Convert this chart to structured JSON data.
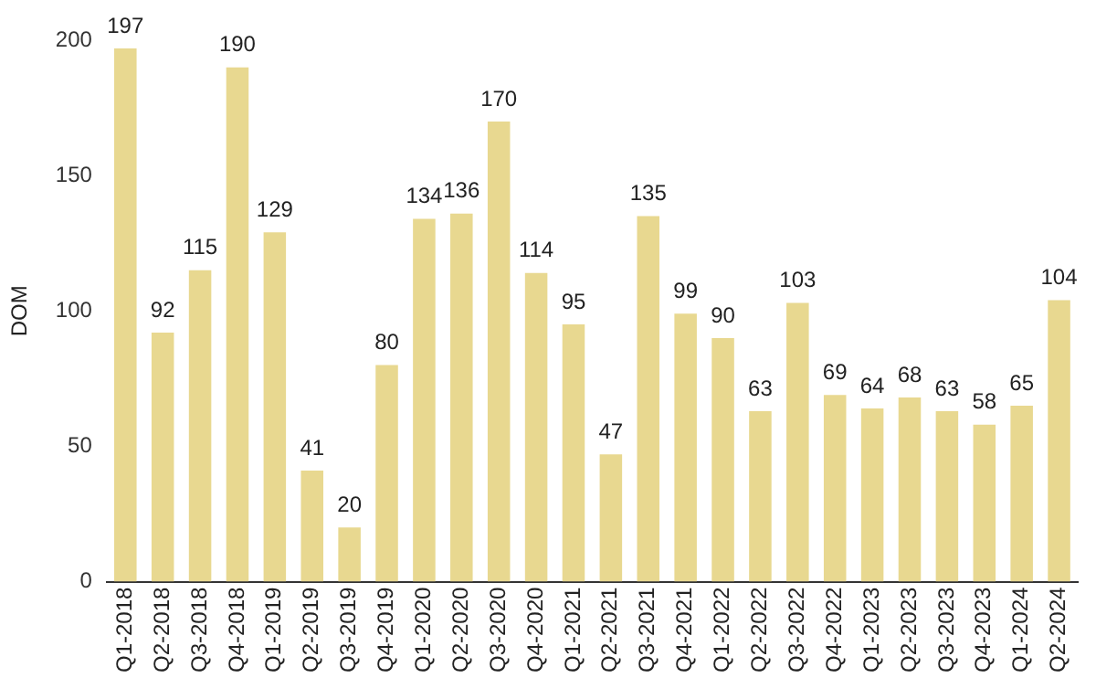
{
  "chart_data": {
    "type": "bar",
    "ylabel": "DOM",
    "categories": [
      "Q1-2018",
      "Q2-2018",
      "Q3-2018",
      "Q4-2018",
      "Q1-2019",
      "Q2-2019",
      "Q3-2019",
      "Q4-2019",
      "Q1-2020",
      "Q2-2020",
      "Q3-2020",
      "Q4-2020",
      "Q1-2021",
      "Q2-2021",
      "Q3-2021",
      "Q4-2021",
      "Q1-2022",
      "Q2-2022",
      "Q3-2022",
      "Q4-2022",
      "Q1-2023",
      "Q2-2023",
      "Q3-2023",
      "Q4-2023",
      "Q1-2024",
      "Q2-2024"
    ],
    "values": [
      197,
      92,
      115,
      190,
      129,
      41,
      20,
      80,
      134,
      136,
      170,
      114,
      95,
      47,
      135,
      99,
      90,
      63,
      103,
      69,
      64,
      68,
      63,
      58,
      65,
      104
    ],
    "color": "#e8d890",
    "ylim": [
      0,
      200
    ],
    "yticks": [
      0,
      50,
      100,
      150,
      200
    ],
    "grid": false,
    "legend": false,
    "data_labels": true
  }
}
